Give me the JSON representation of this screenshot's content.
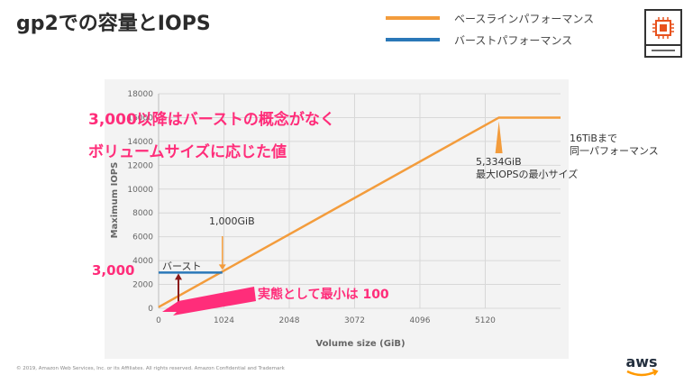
{
  "slide": {
    "title": "gp2での容量とIOPS",
    "footer": "© 2019, Amazon Web Services, Inc. or its Affiliates. All rights reserved. Amazon Confidential and Trademark",
    "legend": [
      {
        "label": "ベースラインパフォーマンス",
        "color": "#f39c3c"
      },
      {
        "label": "バーストパフォーマンス",
        "color": "#2a78b8"
      }
    ],
    "logo_text": "aws"
  },
  "chart_data": {
    "type": "line",
    "xlabel": "Volume size (GiB)",
    "ylabel": "Maximum IOPS",
    "xlim": [
      0,
      6300
    ],
    "ylim": [
      0,
      18000
    ],
    "x_ticks": [
      0,
      1024,
      2048,
      3072,
      4096,
      5120
    ],
    "x_tick_labels": [
      "0",
      "1024",
      "2048",
      "3072",
      "4096",
      "5120"
    ],
    "y_ticks": [
      0,
      2000,
      4000,
      6000,
      8000,
      10000,
      12000,
      14000,
      16000,
      18000
    ],
    "y_tick_labels": [
      "0",
      "2000",
      "4000",
      "6000",
      "8000",
      "10000",
      "12000",
      "14000",
      "16000",
      "18000"
    ],
    "grid": true,
    "series": [
      {
        "name": "ベースラインパフォーマンス",
        "color": "#f39c3c",
        "x": [
          0,
          5334,
          6300
        ],
        "y": [
          100,
          16000,
          16000
        ]
      },
      {
        "name": "バーストパフォーマンス",
        "color": "#2a78b8",
        "x": [
          0,
          1000
        ],
        "y": [
          3000,
          3000
        ]
      }
    ],
    "annotations": {
      "burst_label": "バースト",
      "at_1000": "1,000GiB",
      "max_line1": "5,334GiB",
      "max_line2": "最大IOPSの最小サイズ",
      "cap_line1": "16TiBまで",
      "cap_line2": "同一パフォーマンス",
      "callout_line1": "3,000以降はバーストの概念がなく",
      "callout_line2": "ボリュームサイズに応じた値",
      "burst_value": "3,000",
      "min_note": "実態として最小は 100"
    }
  }
}
